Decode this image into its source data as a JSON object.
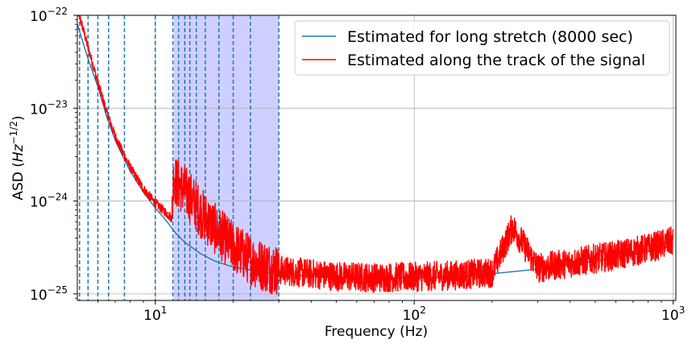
{
  "chart_data": {
    "type": "line",
    "title": "",
    "xlabel": "Frequency (Hz)",
    "ylabel": "ASD (Hz^-1/2)",
    "ylabel_parts": {
      "prefix": "ASD (",
      "base": "Hz",
      "exponent": "−1/2",
      "suffix": ")"
    },
    "xscale": "log",
    "yscale": "log",
    "xlim": [
      5,
      1024
    ],
    "ylim": [
      8.5e-26,
      1e-22
    ],
    "grid": true,
    "legend_position": "top-right",
    "x_ticks": [
      {
        "value": 10,
        "base": "10",
        "exp": "1"
      },
      {
        "value": 100,
        "base": "10",
        "exp": "2"
      },
      {
        "value": 1000,
        "base": "10",
        "exp": "3"
      }
    ],
    "y_ticks": [
      {
        "value": 1e-25,
        "base": "10",
        "exp": "−25"
      },
      {
        "value": 1e-24,
        "base": "10",
        "exp": "−24"
      },
      {
        "value": 1e-23,
        "base": "10",
        "exp": "−23"
      },
      {
        "value": 1e-22,
        "base": "10",
        "exp": "−22"
      }
    ],
    "shaded_band": {
      "x_start": 11.8,
      "x_end": 30,
      "color": "#ccccff"
    },
    "vertical_lines": [
      5.1,
      5.5,
      6.0,
      6.6,
      7.6,
      10.0,
      11.7,
      12.3,
      13.0,
      13.6,
      14.4,
      15.6,
      17.6,
      20.0,
      23.3,
      30.0
    ],
    "vertical_line_color": "#1f77b4",
    "series": [
      {
        "name": "Estimated for long stretch (8000 sec)",
        "color": "#1f77b4",
        "x": [
          5,
          5.5,
          6,
          6.5,
          7,
          7.5,
          8,
          8.5,
          9,
          10,
          11,
          12,
          13,
          14,
          15,
          17,
          20,
          25,
          30,
          40,
          50,
          70,
          100,
          150,
          200,
          300,
          400,
          500,
          600,
          700,
          800,
          900,
          1000
        ],
        "y": [
          8e-23,
          3.4e-23,
          1.7e-23,
          8e-24,
          4.5e-24,
          3e-24,
          2.1e-24,
          1.6e-24,
          1.25e-24,
          8.4e-25,
          6.2e-25,
          4.5e-25,
          3.6e-25,
          3.1e-25,
          2.7e-25,
          2.25e-25,
          1.95e-25,
          1.75e-25,
          1.65e-25,
          1.55e-25,
          1.5e-25,
          1.48e-25,
          1.5e-25,
          1.55e-25,
          1.65e-25,
          1.85e-25,
          2.05e-25,
          2.25e-25,
          2.45e-25,
          2.65e-25,
          2.85e-25,
          3.05e-25,
          3.3e-25
        ]
      },
      {
        "name": "Estimated along the track of the signal",
        "color": "#ff0000",
        "x": [
          5,
          5.5,
          6,
          6.5,
          7,
          7.5,
          8,
          8.5,
          9,
          10,
          11,
          11.6,
          11.8,
          12,
          13,
          14,
          15,
          17,
          20,
          23,
          25,
          30,
          40,
          50,
          70,
          100,
          150,
          200,
          240,
          300,
          400,
          500,
          600,
          700,
          800,
          900,
          1000
        ],
        "y": [
          1.2e-22,
          4.5e-23,
          1.9e-23,
          9e-24,
          5e-24,
          3.3e-24,
          2.3e-24,
          1.75e-24,
          1.35e-24,
          9.5e-25,
          7.5e-25,
          6.5e-25,
          2.2e-24,
          1.6e-24,
          1.3e-24,
          1e-24,
          7.5e-25,
          5e-25,
          3.2e-25,
          2.4e-25,
          2.1e-25,
          1.8e-25,
          1.65e-25,
          1.55e-25,
          1.5e-25,
          1.52e-25,
          1.6e-25,
          1.7e-25,
          5.3e-25,
          1.9e-25,
          2.15e-25,
          2.4e-25,
          2.6e-25,
          2.85e-25,
          3.1e-25,
          3.4e-25,
          3.7e-25
        ]
      }
    ]
  }
}
